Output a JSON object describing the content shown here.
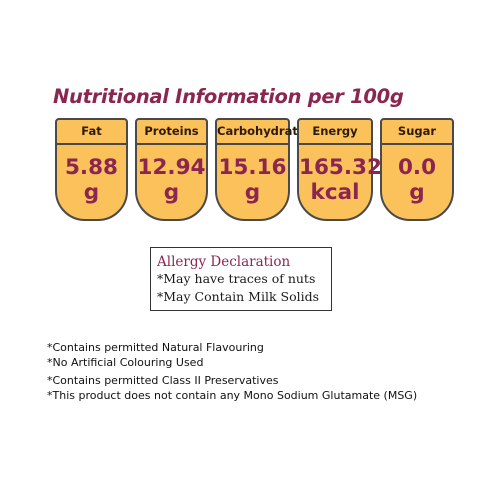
{
  "title": "Nutritional Information per 100g",
  "nutrients": [
    {
      "label": "Fat",
      "value": "5.88",
      "unit": "g"
    },
    {
      "label": "Proteins",
      "value": "12.94",
      "unit": "g"
    },
    {
      "label": "Carbohydrate",
      "value": "15.16",
      "unit": "g"
    },
    {
      "label": "Energy",
      "value": "165.32",
      "unit": "kcal"
    },
    {
      "label": "Sugar",
      "value": "0.0",
      "unit": "g"
    }
  ],
  "allergy": {
    "heading": "Allergy Declaration",
    "lines": [
      "*May have traces of nuts",
      "*May Contain Milk Solids"
    ]
  },
  "notes": [
    "*Contains permitted Natural Flavouring",
    "*No Artificial Colouring Used",
    "*Contains permitted Class II Preservatives",
    "*This product does not contain any Mono Sodium Glutamate (MSG)"
  ],
  "colors": {
    "badge_fill": "#fbc15a",
    "accent": "#8a2650"
  }
}
